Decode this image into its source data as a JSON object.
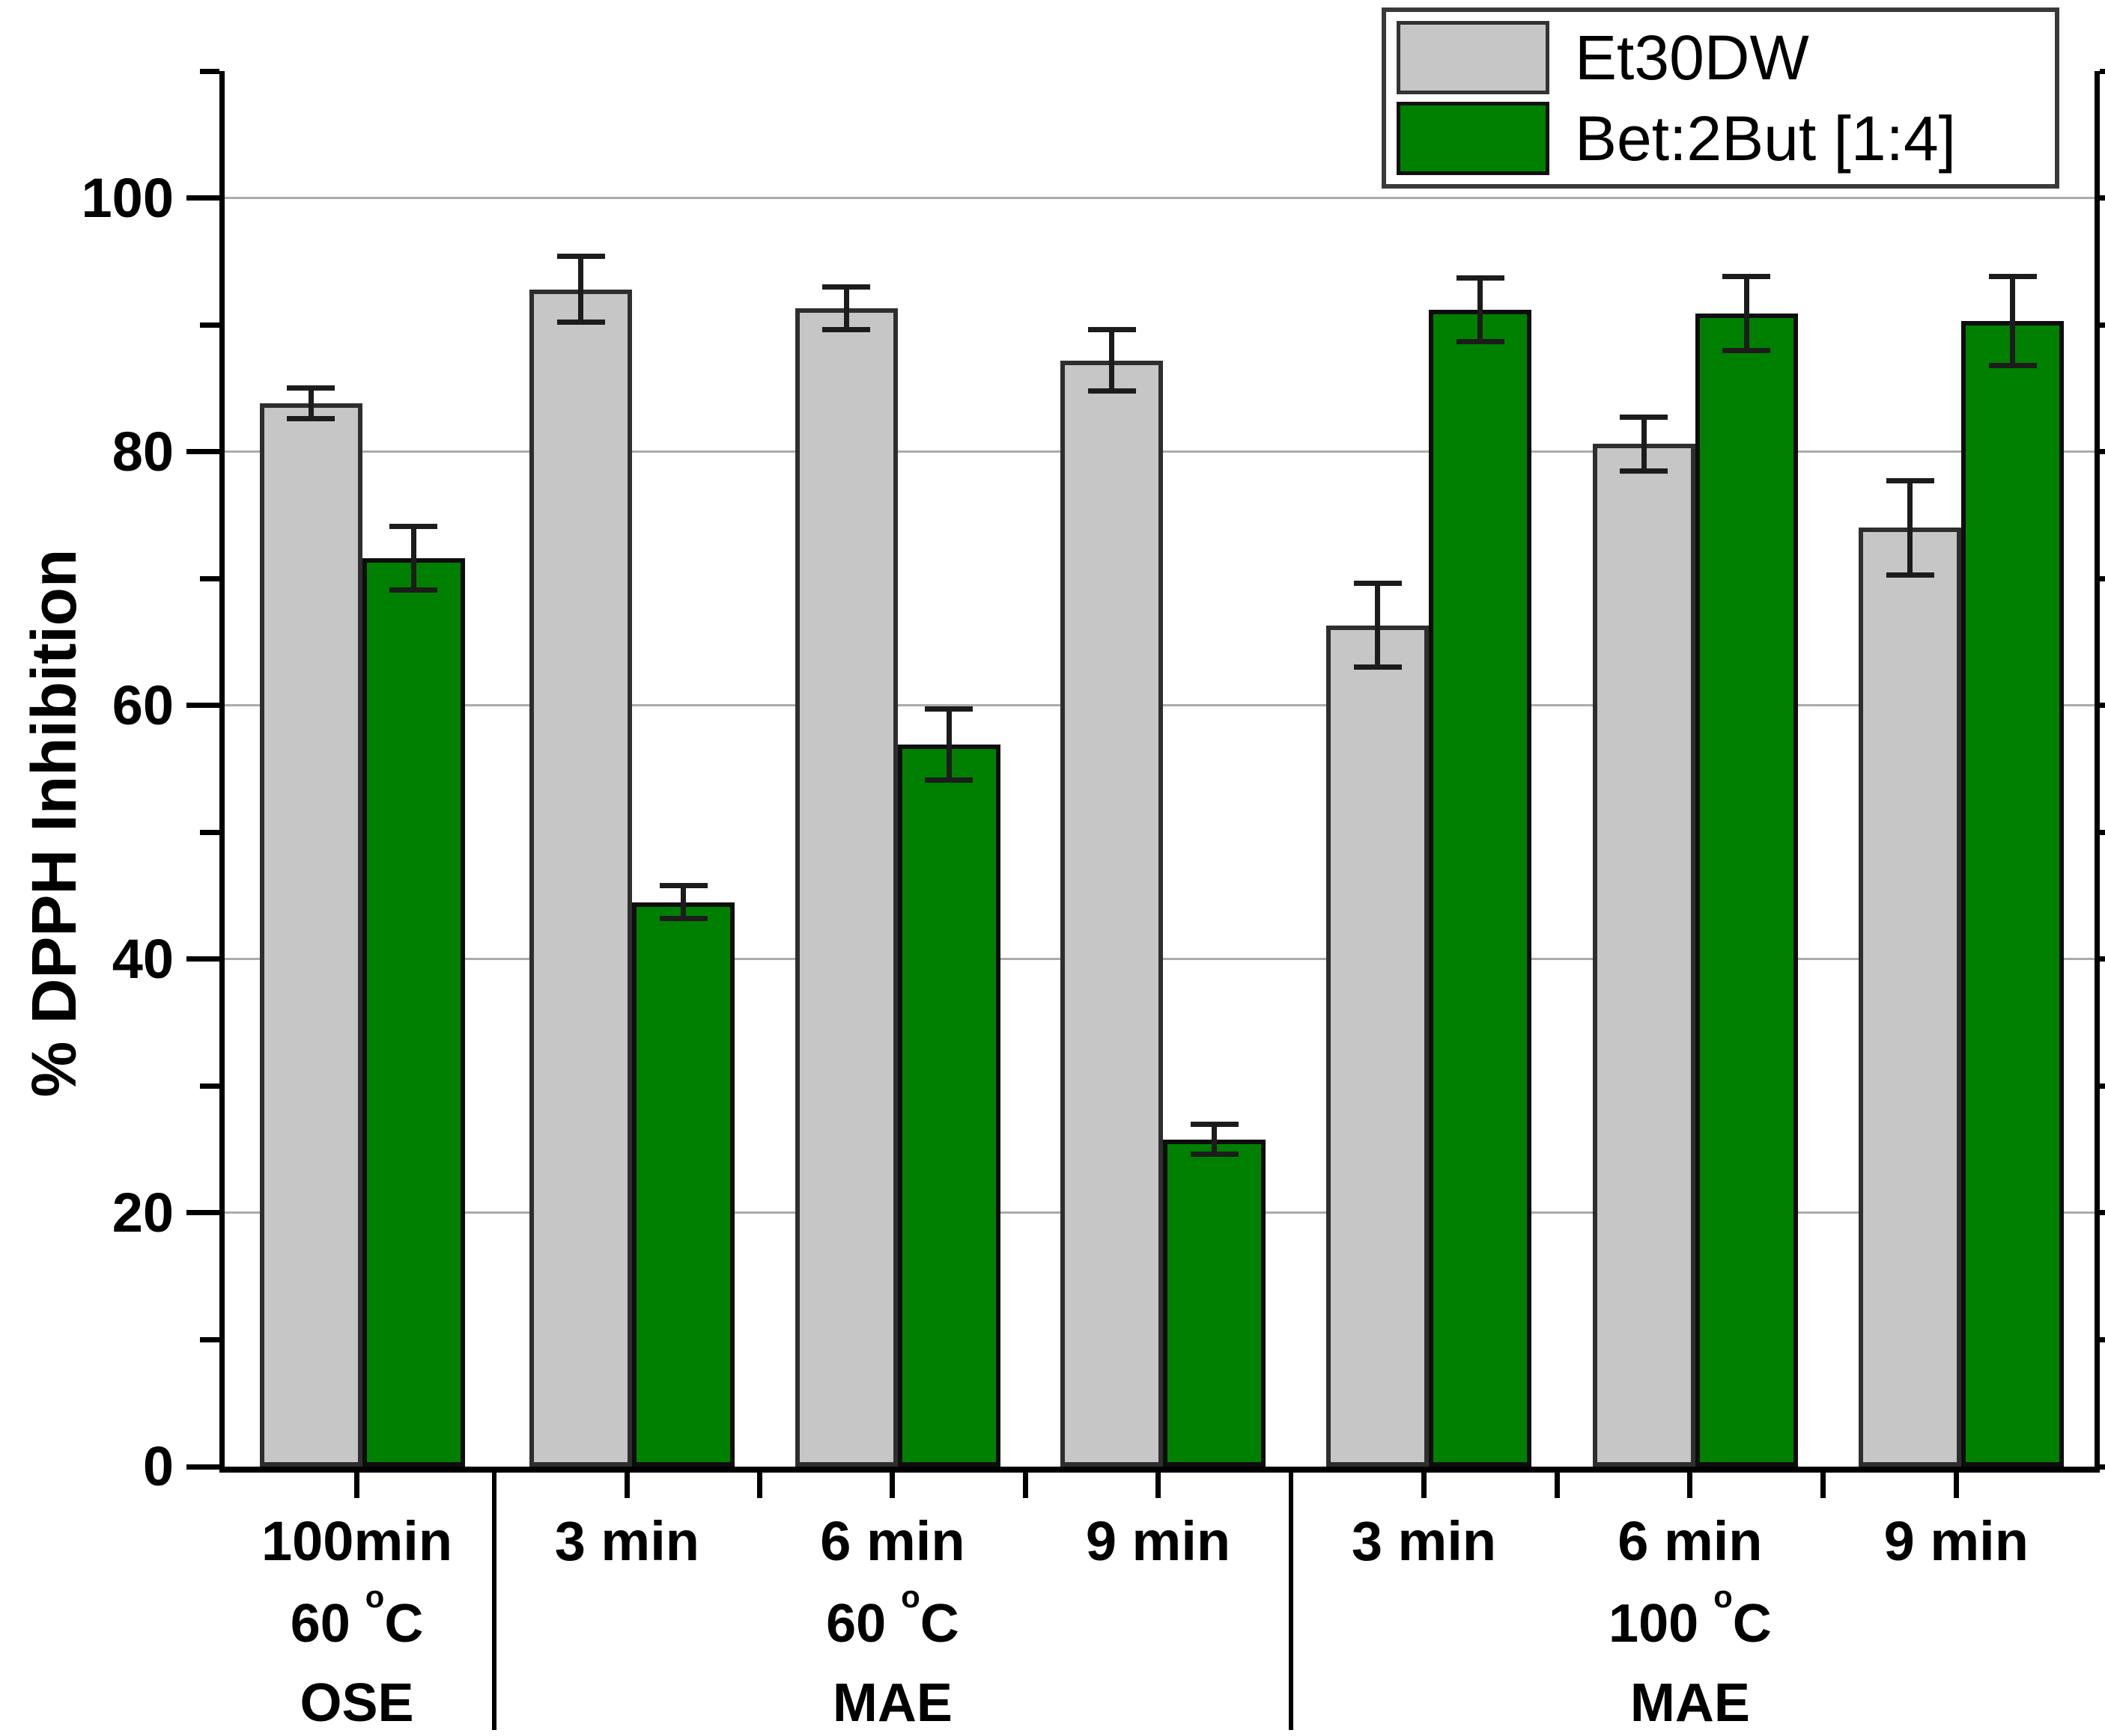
{
  "figure": {
    "background": "#ffffff",
    "axis_color": "#000000",
    "grid_color": "#ababab",
    "text_color": "#000000"
  },
  "chart_data": {
    "type": "bar",
    "title": "",
    "xlabel": "",
    "ylabel": "% DPPH Inhibition",
    "ylim": [
      0,
      110
    ],
    "yticks_major": [
      0,
      20,
      40,
      60,
      80,
      100
    ],
    "yticks_minor": [
      10,
      30,
      50,
      70,
      90,
      110
    ],
    "grid": "horizontal gridlines at major ticks 20-100",
    "legend_position": "top-right",
    "error_bars": true,
    "categories": [
      "100min",
      "3 min",
      "6 min",
      "9 min",
      "3 min",
      "6 min",
      "9 min"
    ],
    "series": [
      {
        "name": "Et30DW",
        "color": "#c6c6c6",
        "outline": "#2e2e2e",
        "values": [
          83.8,
          92.8,
          91.3,
          87.2,
          66.3,
          80.6,
          74.0
        ],
        "errors": [
          1.2,
          2.6,
          1.7,
          2.4,
          3.3,
          2.1,
          3.7
        ]
      },
      {
        "name": "Bet:2But [1:4]",
        "color": "#008000",
        "outline": "#0d0d0d",
        "values": [
          71.6,
          44.5,
          56.9,
          25.8,
          91.2,
          90.9,
          90.3
        ],
        "errors": [
          2.5,
          1.3,
          2.8,
          1.2,
          2.5,
          2.9,
          3.5
        ]
      }
    ],
    "sections": [
      {
        "temp_base": "60 ",
        "temp_sup": "o",
        "temp_after": "C",
        "method": "OSE",
        "count": 1,
        "width_pct": 14.7
      },
      {
        "temp_base": "60 ",
        "temp_sup": "o",
        "temp_after": "C",
        "method": "MAE",
        "count": 3,
        "width_pct": 42.6
      },
      {
        "temp_base": "100 ",
        "temp_sup": "o",
        "temp_after": "C",
        "method": "MAE",
        "count": 3,
        "width_pct": 42.7
      }
    ]
  }
}
